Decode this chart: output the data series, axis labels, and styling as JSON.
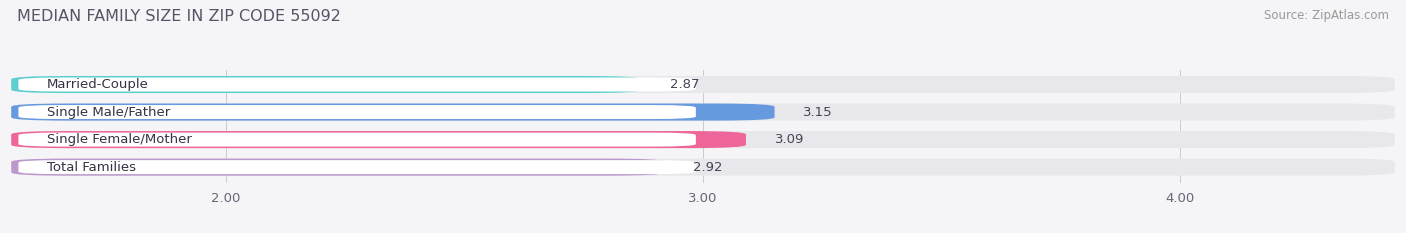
{
  "title": "MEDIAN FAMILY SIZE IN ZIP CODE 55092",
  "source": "Source: ZipAtlas.com",
  "categories": [
    "Married-Couple",
    "Single Male/Father",
    "Single Female/Mother",
    "Total Families"
  ],
  "values": [
    2.87,
    3.15,
    3.09,
    2.92
  ],
  "bar_colors": [
    "#5ecfcf",
    "#6699dd",
    "#ee6699",
    "#bb99cc"
  ],
  "xticks": [
    2.0,
    3.0,
    4.0
  ],
  "xtick_labels": [
    "2.00",
    "3.00",
    "4.00"
  ],
  "xlim_left": 1.55,
  "xlim_right": 4.45,
  "title_color": "#555566",
  "title_fontsize": 11.5,
  "source_fontsize": 8.5,
  "label_fontsize": 9.5,
  "value_fontsize": 9.5,
  "tick_fontsize": 9.5,
  "bar_height": 0.62,
  "bar_bg_color": "#e8e8ec",
  "label_box_color": "#ffffff",
  "background_color": "#f5f5f7",
  "grid_color": "#cccccc",
  "value_color": "#444455",
  "label_text_color": "#333344"
}
